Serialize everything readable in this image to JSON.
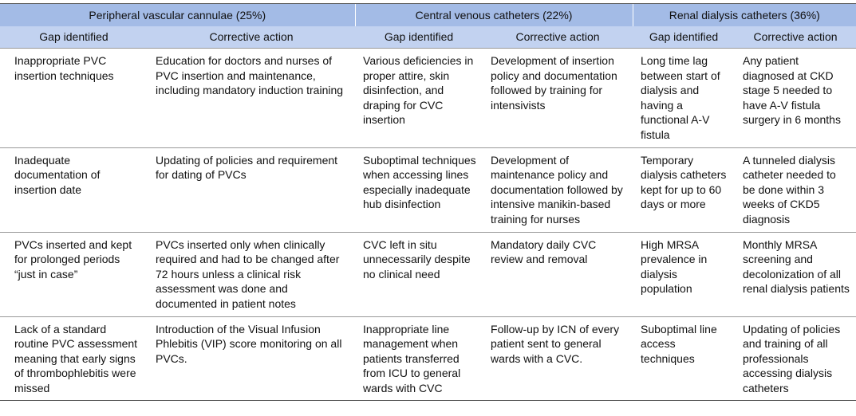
{
  "table": {
    "groups": [
      "Peripheral vascular cannulae (25%)",
      "Central venous catheters (22%)",
      "Renal dialysis catheters (36%)"
    ],
    "columns": [
      "Gap identified",
      "Corrective action",
      "Gap identified",
      "Corrective action",
      "Gap identified",
      "Corrective action"
    ],
    "rows": [
      [
        "Inappropriate PVC insertion techniques",
        "Education for doctors and nurses of PVC insertion and maintenance, including mandatory induction training",
        "Various deficiencies in proper attire, skin disinfection, and draping for CVC insertion",
        "Development of insertion policy and documentation followed by training for intensivists",
        "Long time lag between start of dialysis and having a functional A-V fistula",
        "Any patient diagnosed at CKD stage 5 needed to have A-V fistula surgery in 6 months"
      ],
      [
        "Inadequate documentation of insertion date",
        "Updating of policies and requirement for dating of PVCs",
        "Suboptimal techniques when accessing lines especially inadequate hub disinfection",
        "Development of maintenance policy and documentation followed by intensive manikin-based training for nurses",
        "Temporary dialysis catheters kept for up to 60 days or more",
        "A tunneled dialysis catheter needed to be done within 3 weeks of CKD5 diagnosis"
      ],
      [
        "PVCs inserted and kept for prolonged periods “just in case”",
        "PVCs inserted only when clinically required and had to be changed after 72 hours unless a clinical risk assessment was done and documented in patient notes",
        "CVC left in situ unnecessarily despite no clinical need",
        "Mandatory daily CVC review and removal",
        "High MRSA prevalence in dialysis population",
        "Monthly MRSA screening and decolonization of all renal dialysis patients"
      ],
      [
        "Lack of a standard routine PVC assessment meaning that early signs of thrombophlebitis were missed",
        "Introduction of the Visual Infusion Phlebitis (VIP) score monitoring on all PVCs.",
        "Inappropriate line management when patients transferred from ICU to general wards with CVC",
        "Follow-up by ICN of every patient sent to general wards with a CVC.",
        "Suboptimal line access techniques",
        "Updating of policies and training of all professionals accessing dialysis catheters"
      ]
    ]
  }
}
